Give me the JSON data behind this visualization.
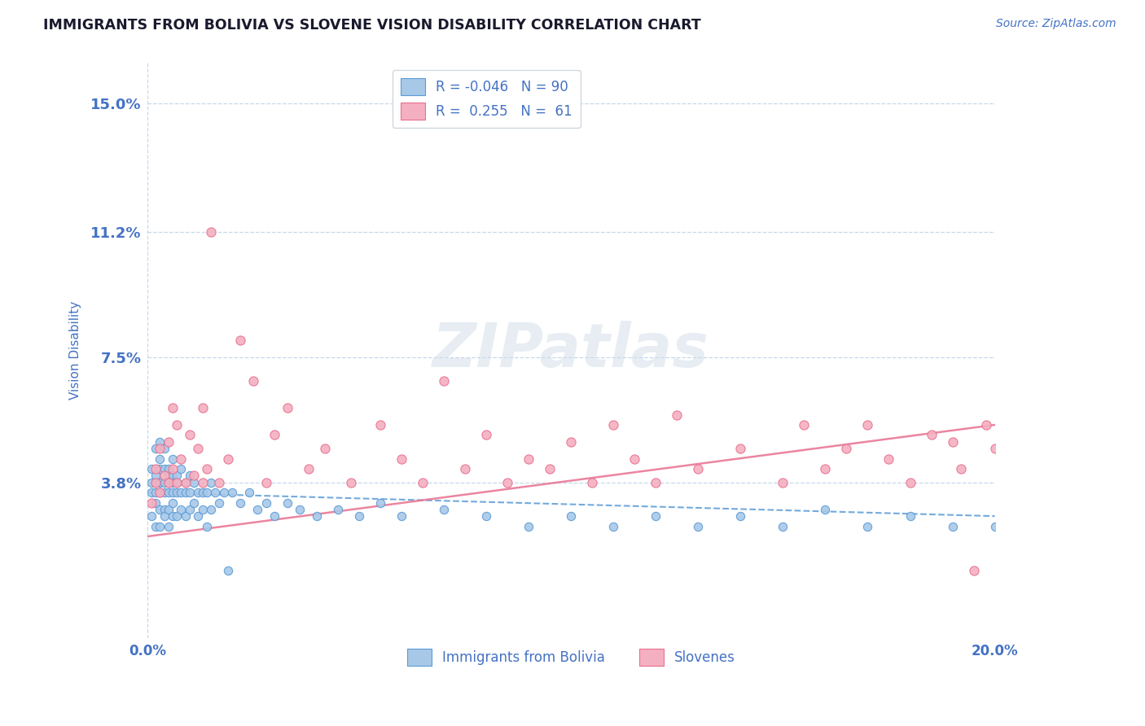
{
  "title": "IMMIGRANTS FROM BOLIVIA VS SLOVENE VISION DISABILITY CORRELATION CHART",
  "source_text": "Source: ZipAtlas.com",
  "ylabel": "Vision Disability",
  "xlim": [
    0.0,
    0.2
  ],
  "ylim": [
    -0.008,
    0.162
  ],
  "xtick_labels": [
    "0.0%",
    "20.0%"
  ],
  "xtick_positions": [
    0.0,
    0.2
  ],
  "ytick_positions": [
    0.038,
    0.075,
    0.112,
    0.15
  ],
  "ytick_labels": [
    "3.8%",
    "7.5%",
    "11.2%",
    "15.0%"
  ],
  "blue_R": -0.046,
  "blue_N": 90,
  "pink_R": 0.255,
  "pink_N": 61,
  "blue_color": "#a8c8e8",
  "pink_color": "#f4b0c0",
  "blue_edge_color": "#5b9bd5",
  "pink_edge_color": "#e87090",
  "blue_line_color": "#5b9bd5",
  "pink_line_color": "#e87090",
  "tick_label_color": "#4472c4",
  "axis_label_color": "#4472c4",
  "source_color": "#4472c4",
  "title_color": "#1a1a2e",
  "legend_label1": "Immigrants from Bolivia",
  "legend_label2": "Slovenes",
  "watermark": "ZIPatlas",
  "blue_scatter_x": [
    0.001,
    0.001,
    0.001,
    0.001,
    0.002,
    0.002,
    0.002,
    0.002,
    0.002,
    0.002,
    0.003,
    0.003,
    0.003,
    0.003,
    0.003,
    0.003,
    0.003,
    0.003,
    0.004,
    0.004,
    0.004,
    0.004,
    0.004,
    0.004,
    0.005,
    0.005,
    0.005,
    0.005,
    0.005,
    0.005,
    0.006,
    0.006,
    0.006,
    0.006,
    0.006,
    0.006,
    0.007,
    0.007,
    0.007,
    0.007,
    0.008,
    0.008,
    0.008,
    0.009,
    0.009,
    0.009,
    0.01,
    0.01,
    0.01,
    0.011,
    0.011,
    0.012,
    0.012,
    0.013,
    0.013,
    0.014,
    0.014,
    0.015,
    0.015,
    0.016,
    0.017,
    0.018,
    0.019,
    0.02,
    0.022,
    0.024,
    0.026,
    0.028,
    0.03,
    0.033,
    0.036,
    0.04,
    0.045,
    0.05,
    0.055,
    0.06,
    0.07,
    0.08,
    0.09,
    0.1,
    0.11,
    0.12,
    0.13,
    0.14,
    0.15,
    0.16,
    0.17,
    0.18,
    0.19,
    0.2
  ],
  "blue_scatter_y": [
    0.038,
    0.042,
    0.035,
    0.028,
    0.04,
    0.038,
    0.032,
    0.048,
    0.035,
    0.025,
    0.038,
    0.042,
    0.035,
    0.03,
    0.045,
    0.038,
    0.025,
    0.05,
    0.038,
    0.042,
    0.03,
    0.035,
    0.028,
    0.048,
    0.04,
    0.035,
    0.03,
    0.042,
    0.025,
    0.038,
    0.035,
    0.04,
    0.028,
    0.032,
    0.045,
    0.038,
    0.035,
    0.04,
    0.028,
    0.038,
    0.035,
    0.03,
    0.042,
    0.035,
    0.038,
    0.028,
    0.035,
    0.04,
    0.03,
    0.038,
    0.032,
    0.035,
    0.028,
    0.035,
    0.03,
    0.035,
    0.025,
    0.038,
    0.03,
    0.035,
    0.032,
    0.035,
    0.012,
    0.035,
    0.032,
    0.035,
    0.03,
    0.032,
    0.028,
    0.032,
    0.03,
    0.028,
    0.03,
    0.028,
    0.032,
    0.028,
    0.03,
    0.028,
    0.025,
    0.028,
    0.025,
    0.028,
    0.025,
    0.028,
    0.025,
    0.03,
    0.025,
    0.028,
    0.025,
    0.025
  ],
  "pink_scatter_x": [
    0.001,
    0.002,
    0.002,
    0.003,
    0.003,
    0.004,
    0.005,
    0.005,
    0.006,
    0.006,
    0.007,
    0.007,
    0.008,
    0.009,
    0.01,
    0.011,
    0.012,
    0.013,
    0.013,
    0.014,
    0.015,
    0.017,
    0.019,
    0.022,
    0.025,
    0.028,
    0.03,
    0.033,
    0.038,
    0.042,
    0.048,
    0.055,
    0.06,
    0.065,
    0.07,
    0.075,
    0.08,
    0.085,
    0.09,
    0.095,
    0.1,
    0.105,
    0.11,
    0.115,
    0.12,
    0.125,
    0.13,
    0.14,
    0.15,
    0.155,
    0.16,
    0.165,
    0.17,
    0.175,
    0.18,
    0.185,
    0.19,
    0.192,
    0.195,
    0.198,
    0.2
  ],
  "pink_scatter_y": [
    0.032,
    0.038,
    0.042,
    0.035,
    0.048,
    0.04,
    0.038,
    0.05,
    0.042,
    0.06,
    0.038,
    0.055,
    0.045,
    0.038,
    0.052,
    0.04,
    0.048,
    0.038,
    0.06,
    0.042,
    0.112,
    0.038,
    0.045,
    0.08,
    0.068,
    0.038,
    0.052,
    0.06,
    0.042,
    0.048,
    0.038,
    0.055,
    0.045,
    0.038,
    0.068,
    0.042,
    0.052,
    0.038,
    0.045,
    0.042,
    0.05,
    0.038,
    0.055,
    0.045,
    0.038,
    0.058,
    0.042,
    0.048,
    0.038,
    0.055,
    0.042,
    0.048,
    0.055,
    0.045,
    0.038,
    0.052,
    0.05,
    0.042,
    0.012,
    0.055,
    0.048
  ]
}
